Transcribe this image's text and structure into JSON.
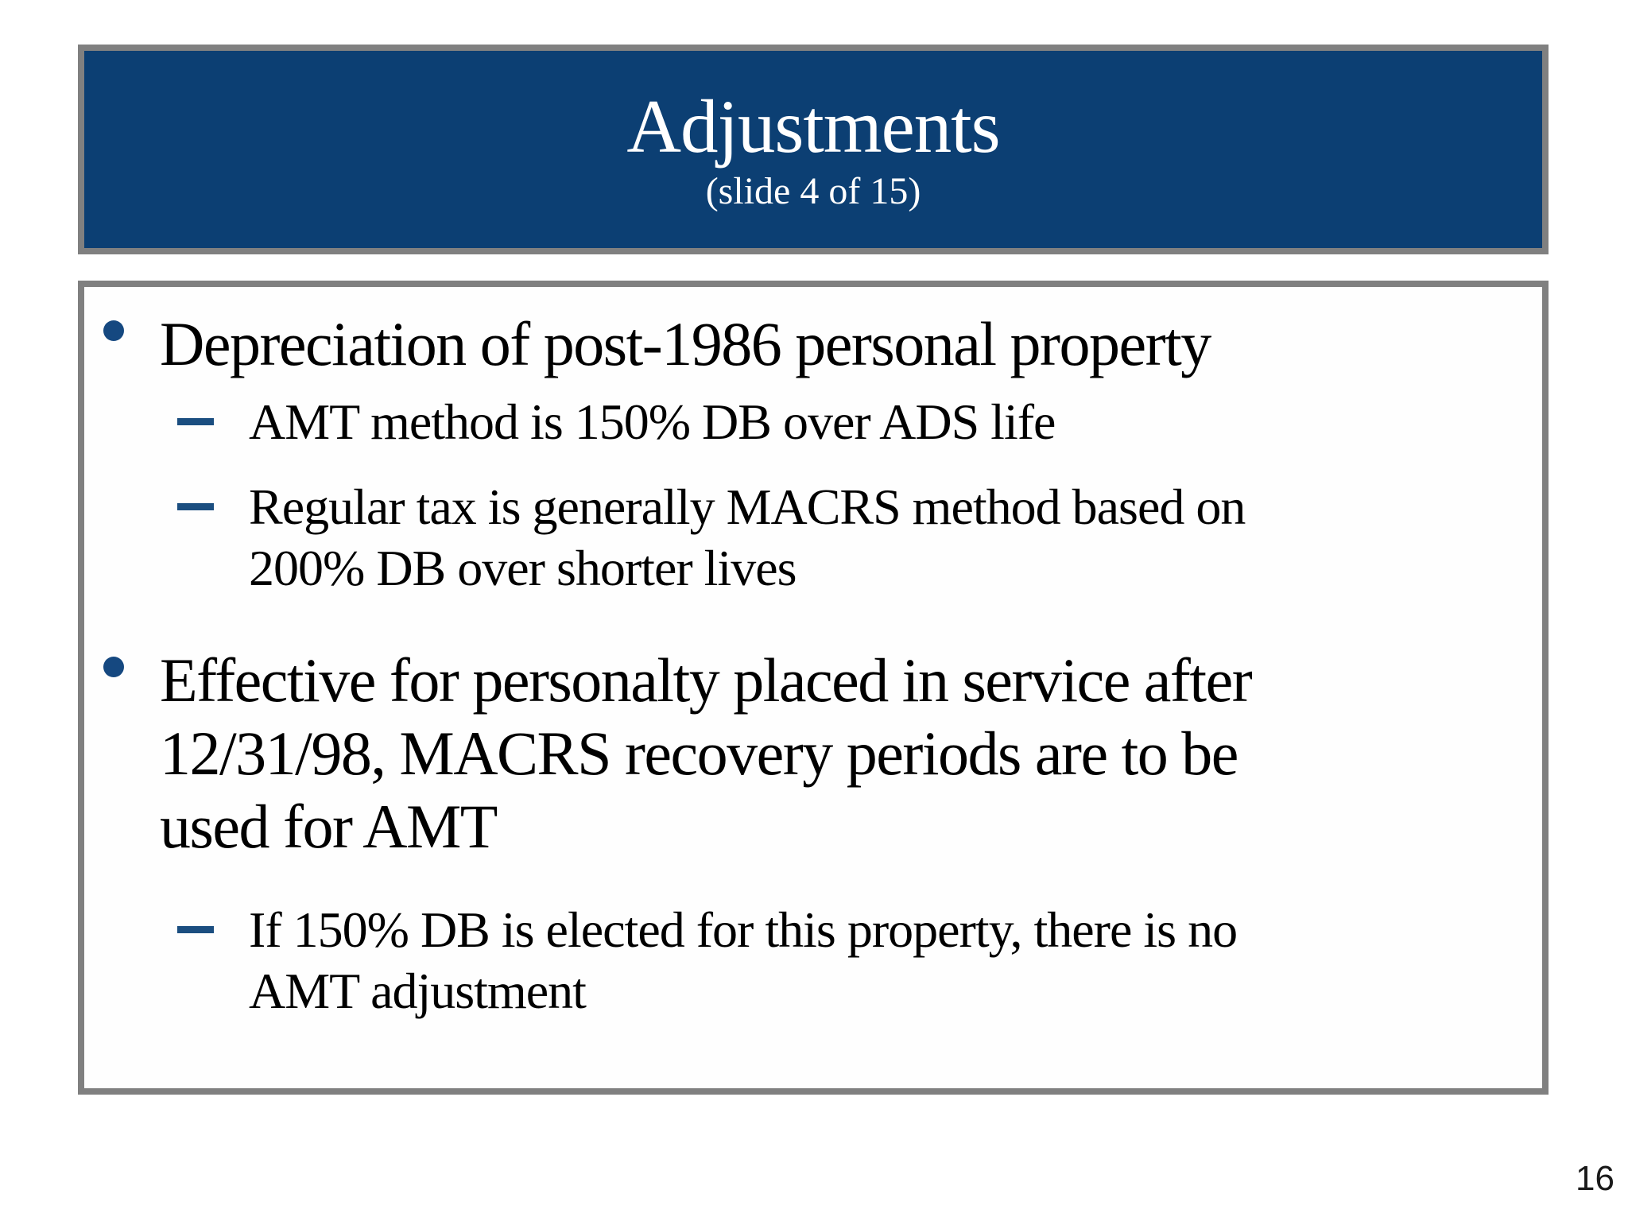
{
  "slide": {
    "title": "Adjustments",
    "subtitle": "(slide 4 of 15)",
    "bullets": [
      {
        "level": 1,
        "lines": [
          "Depreciation of post-1986 personal property"
        ]
      },
      {
        "level": 2,
        "lines": [
          "AMT method is 150% DB over ADS life"
        ]
      },
      {
        "level": 2,
        "lines": [
          "Regular tax is generally MACRS method based on",
          "200% DB over shorter lives"
        ]
      },
      {
        "level": 1,
        "lines": [
          "Effective for personalty placed in service after",
          "12/31/98, MACRS recovery periods are to be",
          "used for AMT"
        ]
      },
      {
        "level": 2,
        "lines": [
          "If 150% DB is elected for this property, there is no",
          "AMT adjustment"
        ]
      }
    ],
    "page_number": "16"
  },
  "colors": {
    "title_bar_bg": "#0c3f73",
    "box_border_gray": "#808080",
    "bullet_marker_blue": "#154880",
    "dash_marker_blue": "#1b4e80",
    "title_text": "#ffffff",
    "body_text": "#000000",
    "background": "#ffffff"
  }
}
